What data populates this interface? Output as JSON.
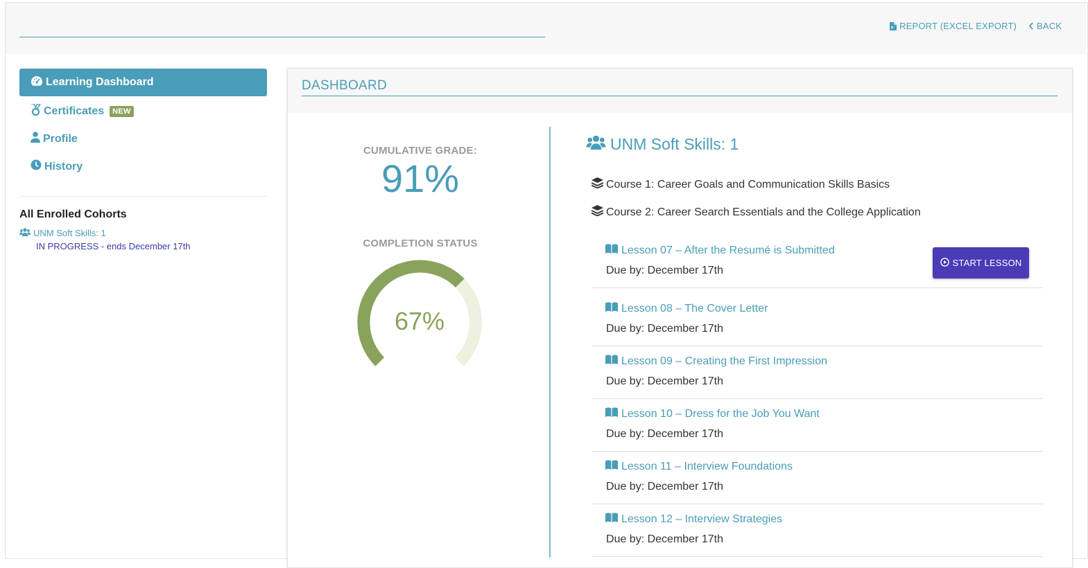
{
  "header": {
    "report_label": "REPORT (EXCEL EXPORT)",
    "back_label": "BACK"
  },
  "sidebar": {
    "items": [
      {
        "label": "Learning Dashboard",
        "icon": "dashboard-gauge-icon",
        "active": true
      },
      {
        "label": "Certificates",
        "icon": "medal-icon",
        "badge": "NEW"
      },
      {
        "label": "Profile",
        "icon": "user-icon"
      },
      {
        "label": "History",
        "icon": "clock-icon"
      }
    ],
    "cohorts_title": "All Enrolled Cohorts",
    "cohort": {
      "name": "UNM Soft Skills: 1",
      "status": "IN PROGRESS - ends December 17th"
    }
  },
  "panel": {
    "title": "DASHBOARD",
    "cumulative_label": "CUMULATIVE GRADE:",
    "cumulative_value": "91%",
    "completion_label": "COMPLETION STATUS",
    "completion_value": "67%",
    "completion_fraction": 0.67
  },
  "cohort_detail": {
    "title": "UNM Soft Skills: 1",
    "courses": [
      "Course 1: Career Goals and Communication Skills Basics",
      "Course 2: Career Search Essentials and the College Application"
    ],
    "lessons": [
      {
        "title": "Lesson 07 – After the Resumé is Submitted",
        "due": "Due by: December 17th",
        "action": "START LESSON"
      },
      {
        "title": "Lesson 08 – The Cover Letter",
        "due": "Due by: December 17th"
      },
      {
        "title": "Lesson 09 – Creating the First Impression",
        "due": "Due by: December 17th"
      },
      {
        "title": "Lesson 10 – Dress for the Job You Want",
        "due": "Due by: December 17th"
      },
      {
        "title": "Lesson 11 – Interview Foundations",
        "due": "Due by: December 17th"
      },
      {
        "title": "Lesson 12 – Interview Strategies",
        "due": "Due by: December 17th"
      }
    ]
  },
  "colors": {
    "accent": "#4a9db8",
    "gauge": "#8aa35c",
    "gauge_track": "#ecf1e0",
    "start_button": "#4b3bb6",
    "status_text": "#3a3aa8"
  }
}
